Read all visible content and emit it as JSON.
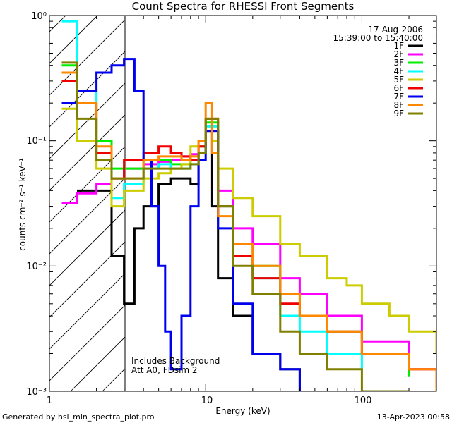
{
  "chart_data": {
    "type": "line",
    "title": "Count Spectra for RHESSI Front Segments",
    "xlabel": "Energy (keV)",
    "ylabel": "counts cm⁻² s⁻¹ keV⁻¹",
    "xscale": "log",
    "yscale": "log",
    "xlim": [
      1,
      300
    ],
    "ylim": [
      0.001,
      1
    ],
    "x_tick_labels": [
      "1",
      "10",
      "100"
    ],
    "y_tick_labels": [
      "10⁻³",
      "10⁻²",
      "10⁻¹",
      "10⁰"
    ],
    "info_lines": [
      "17-Aug-2006",
      "15:39:00 to 15:40:00"
    ],
    "annotations": [
      "Includes Background",
      "Att A0, FDsim 2"
    ],
    "footer_left": "Generated by hsi_min_spectra_plot.pro",
    "footer_right": "13-Apr-2023 00:58",
    "shaded_region_x": [
      1,
      3
    ],
    "legend_position": "top-right",
    "series": [
      {
        "name": "1F",
        "color": "#000000",
        "x": [
          1.5,
          2.0,
          2.5,
          3.0,
          3.5,
          4.0,
          5.0,
          6.0,
          7.0,
          8.0,
          9.0,
          10.0,
          11.0,
          12.0,
          15.0,
          20.0,
          30.0,
          40.0
        ],
        "values": [
          0.04,
          0.04,
          0.012,
          0.005,
          0.02,
          0.03,
          0.045,
          0.05,
          0.05,
          0.045,
          0.08,
          0.12,
          0.03,
          0.008,
          0.004,
          0.002,
          0.0015,
          0.001
        ]
      },
      {
        "name": "2F",
        "color": "#ff00ff",
        "x": [
          1.2,
          1.5,
          2.0,
          2.5,
          3.0,
          4.0,
          5.0,
          6.0,
          7.0,
          8.0,
          9.0,
          10.0,
          12.0,
          15.0,
          20.0,
          30.0,
          40.0,
          60.0,
          100.0,
          200.0,
          300.0
        ],
        "values": [
          0.032,
          0.038,
          0.045,
          0.05,
          0.06,
          0.065,
          0.068,
          0.07,
          0.075,
          0.078,
          0.09,
          0.12,
          0.04,
          0.02,
          0.015,
          0.008,
          0.006,
          0.004,
          0.0025,
          0.0015,
          0.001
        ]
      },
      {
        "name": "3F",
        "color": "#00ee00",
        "x": [
          1.2,
          1.5,
          2.0,
          2.5,
          3.0,
          4.0,
          5.0,
          6.0,
          7.0,
          8.0,
          9.0,
          10.0,
          12.0,
          15.0,
          20.0,
          30.0,
          40.0,
          60.0,
          100.0,
          200.0
        ],
        "values": [
          0.4,
          0.2,
          0.1,
          0.06,
          0.06,
          0.07,
          0.07,
          0.065,
          0.065,
          0.07,
          0.09,
          0.14,
          0.03,
          0.015,
          0.01,
          0.006,
          0.004,
          0.003,
          0.002,
          0.0013
        ]
      },
      {
        "name": "4F",
        "color": "#00ffff",
        "x": [
          1.2,
          1.5,
          2.0,
          2.5,
          3.0,
          4.0,
          5.0,
          6.0,
          7.0,
          8.0,
          9.0,
          10.0,
          12.0,
          15.0,
          20.0,
          30.0,
          40.0,
          60.0,
          100.0
        ],
        "values": [
          0.9,
          0.25,
          0.08,
          0.035,
          0.045,
          0.06,
          0.065,
          0.06,
          0.06,
          0.065,
          0.08,
          0.13,
          0.03,
          0.012,
          0.008,
          0.004,
          0.003,
          0.002,
          0.0015
        ]
      },
      {
        "name": "5F",
        "color": "#cccc00",
        "x": [
          1.2,
          1.5,
          2.0,
          2.5,
          3.0,
          4.0,
          5.0,
          6.0,
          7.0,
          8.0,
          9.0,
          10.0,
          11.0,
          12.0,
          15.0,
          20.0,
          30.0,
          40.0,
          60.0,
          80.0,
          100.0,
          150.0,
          200.0,
          300.0
        ],
        "values": [
          0.18,
          0.1,
          0.06,
          0.03,
          0.04,
          0.05,
          0.055,
          0.06,
          0.065,
          0.09,
          0.1,
          0.12,
          0.1,
          0.06,
          0.035,
          0.025,
          0.015,
          0.012,
          0.008,
          0.007,
          0.005,
          0.004,
          0.003,
          0.002
        ]
      },
      {
        "name": "6F",
        "color": "#ee0000",
        "x": [
          1.2,
          1.5,
          2.0,
          2.5,
          3.0,
          4.0,
          5.0,
          6.0,
          7.0,
          8.0,
          9.0,
          10.0,
          12.0,
          15.0,
          20.0,
          30.0,
          40.0,
          60.0,
          100.0,
          200.0,
          300.0
        ],
        "values": [
          0.3,
          0.2,
          0.08,
          0.05,
          0.07,
          0.08,
          0.09,
          0.08,
          0.075,
          0.07,
          0.09,
          0.15,
          0.03,
          0.012,
          0.008,
          0.005,
          0.004,
          0.003,
          0.002,
          0.0015,
          0.001
        ]
      },
      {
        "name": "7F",
        "color": "#0000ee",
        "x": [
          1.2,
          1.5,
          2.0,
          2.5,
          3.0,
          3.5,
          4.0,
          4.5,
          5.0,
          5.5,
          6.0,
          7.0,
          8.0,
          9.0,
          10.0,
          12.0,
          15.0,
          20.0,
          30.0,
          40.0
        ],
        "values": [
          0.2,
          0.25,
          0.35,
          0.4,
          0.45,
          0.25,
          0.07,
          0.03,
          0.01,
          0.003,
          0.0015,
          0.004,
          0.03,
          0.07,
          0.12,
          0.02,
          0.005,
          0.002,
          0.0015,
          0.001
        ]
      },
      {
        "name": "8F",
        "color": "#ff8800",
        "x": [
          1.2,
          1.5,
          2.0,
          2.5,
          3.0,
          4.0,
          5.0,
          6.0,
          7.0,
          8.0,
          9.0,
          10.0,
          11.0,
          12.0,
          15.0,
          20.0,
          30.0,
          40.0,
          60.0,
          100.0,
          200.0,
          300.0
        ],
        "values": [
          0.35,
          0.2,
          0.09,
          0.05,
          0.05,
          0.07,
          0.075,
          0.075,
          0.07,
          0.075,
          0.1,
          0.2,
          0.08,
          0.025,
          0.015,
          0.01,
          0.006,
          0.004,
          0.003,
          0.002,
          0.0015,
          0.001
        ]
      },
      {
        "name": "9F",
        "color": "#808000",
        "x": [
          1.2,
          1.5,
          2.0,
          2.5,
          3.0,
          4.0,
          5.0,
          6.0,
          7.0,
          8.0,
          9.0,
          10.0,
          12.0,
          15.0,
          20.0,
          30.0,
          40.0,
          60.0,
          100.0,
          200.0
        ],
        "values": [
          0.42,
          0.15,
          0.07,
          0.05,
          0.05,
          0.06,
          0.06,
          0.06,
          0.06,
          0.065,
          0.08,
          0.15,
          0.03,
          0.01,
          0.006,
          0.003,
          0.002,
          0.0015,
          0.001,
          0.001
        ]
      }
    ]
  }
}
